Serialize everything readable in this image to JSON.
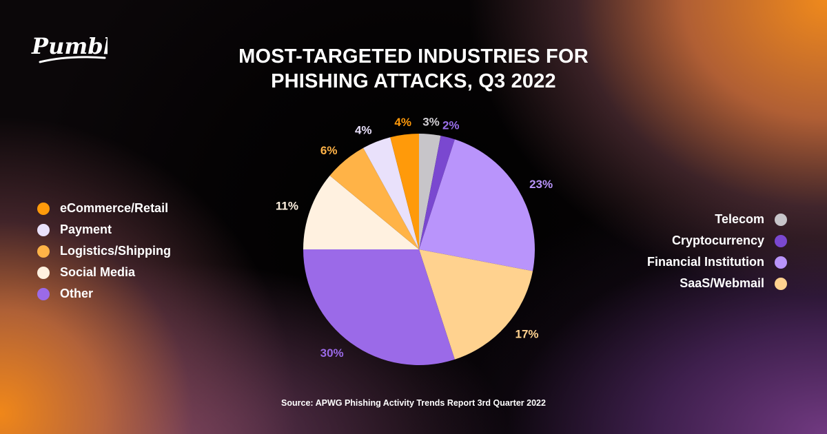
{
  "brand": {
    "logo_text": "Pumble"
  },
  "title_lines": [
    "MOST-TARGETED INDUSTRIES FOR",
    "PHISHING ATTACKS, Q3 2022"
  ],
  "source": "Source: APWG Phishing Activity Trends Report 3rd Quarter 2022",
  "legend_left": [
    {
      "label": "eCommerce/Retail",
      "color": "#ff9a0a"
    },
    {
      "label": "Payment",
      "color": "#e9e1fb"
    },
    {
      "label": "Logistics/Shipping",
      "color": "#ffb347"
    },
    {
      "label": "Social Media",
      "color": "#fff1e0"
    },
    {
      "label": "Other",
      "color": "#9b6ae8"
    }
  ],
  "legend_right": [
    {
      "label": "Telecom",
      "color": "#c7c5c9"
    },
    {
      "label": "Cryptocurrency",
      "color": "#7a48d0"
    },
    {
      "label": "Financial Institution",
      "color": "#b994fb"
    },
    {
      "label": "SaaS/Webmail",
      "color": "#ffd28f"
    }
  ],
  "chart_data": {
    "type": "pie",
    "title": "MOST-TARGETED INDUSTRIES FOR PHISHING ATTACKS, Q3 2022",
    "legend_placement": "left and right",
    "slices": [
      {
        "label": "Telecom",
        "value": 3,
        "display": "3%",
        "color": "#c7c5c9",
        "label_color": "#d2d0d4"
      },
      {
        "label": "Cryptocurrency",
        "value": 2,
        "display": "2%",
        "color": "#7a48d0",
        "label_color": "#9a70ea"
      },
      {
        "label": "Financial Institution",
        "value": 23,
        "display": "23%",
        "color": "#b994fb",
        "label_color": "#b994fb"
      },
      {
        "label": "SaaS/Webmail",
        "value": 17,
        "display": "17%",
        "color": "#ffd28f",
        "label_color": "#ffd28f"
      },
      {
        "label": "Other",
        "value": 30,
        "display": "30%",
        "color": "#9b6ae8",
        "label_color": "#9b6ae8"
      },
      {
        "label": "Social Media",
        "value": 11,
        "display": "11%",
        "color": "#fff1e0",
        "label_color": "#fff1e0"
      },
      {
        "label": "Logistics/Shipping",
        "value": 6,
        "display": "6%",
        "color": "#ffb347",
        "label_color": "#ffb347"
      },
      {
        "label": "Payment",
        "value": 4,
        "display": "4%",
        "color": "#e9e1fb",
        "label_color": "#e9e1fb"
      },
      {
        "label": "eCommerce/Retail",
        "value": 4,
        "display": "4%",
        "color": "#ff9a0a",
        "label_color": "#ff9a0a"
      }
    ]
  }
}
